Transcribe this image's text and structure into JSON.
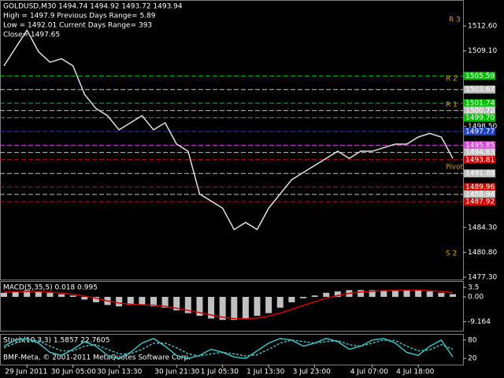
{
  "header": {
    "lines": [
      "GOLDUSD,M30  1494.74 1494.92 1493.72 1493.94",
      "High = 1497.9   Previous Days Range= 5.89",
      "Low = 1492.01   Current Days Range= 393",
      "Close= 1497.65"
    ]
  },
  "footer": "BMF-Meta, © 2001-2011 MetaQuotes Software Corp.",
  "chart_data": [
    {
      "type": "line",
      "color": "#e0e0e0",
      "categories": [
        null,
        null,
        "29 Jun 2011",
        null,
        null,
        null,
        "30 Jun 05:00",
        null,
        null,
        null,
        "30 Jun 13:30",
        null,
        null,
        null,
        null,
        "30 Jun 21:30",
        null,
        null,
        null,
        "1 Jul 05:30",
        null,
        null,
        null,
        "1 Jul 13:30",
        null,
        null,
        null,
        "3 Jul 23:00",
        null,
        null,
        null,
        null,
        "4 Jul 07:00",
        null,
        null,
        null,
        "4 Jul 18:00",
        null,
        null,
        null
      ],
      "values": [
        1507,
        1509.5,
        1512,
        1509,
        1507.5,
        1508,
        1507,
        1503,
        1501,
        1500,
        1498,
        1499,
        1500,
        1498,
        1499,
        1496,
        1495,
        1489,
        1488,
        1487,
        1484,
        1485,
        1484,
        1487,
        1489,
        1491,
        1492,
        1493,
        1494,
        1495,
        1494,
        1495,
        1495,
        1495.5,
        1496,
        1496,
        1497,
        1497.5,
        1497,
        1494
      ],
      "ylim": [
        1476.97,
        1516.25
      ],
      "yticks": [
        {
          "value": 1512.6,
          "label": "1512.60"
        },
        {
          "value": 1509.1,
          "label": "1509.10"
        },
        {
          "value": 1498.5,
          "label": "1498.50"
        },
        {
          "value": 1484.3,
          "label": "1484.30"
        },
        {
          "value": 1480.8,
          "label": "1480.80"
        },
        {
          "value": 1477.3,
          "label": "1477.30"
        }
      ],
      "levels": [
        {
          "value": 1505.59,
          "color": "#00c000"
        },
        {
          "value": 1503.67,
          "color": "#c0c0c0"
        },
        {
          "value": 1501.74,
          "color": "#00c000"
        },
        {
          "value": 1500.72,
          "color": "#c0c0c0"
        },
        {
          "value": {
            "value": 1499.7,
            "label": "1499.70"
          },
          "color": "#00c000"
        },
        {
          "value": 1497.77,
          "color": "#2040c0"
        },
        {
          "value": 1495.85,
          "color": "#e040e0"
        },
        {
          "value": 1494.83,
          "color": "#c0c0c0"
        },
        {
          "value": 1493.81,
          "color": "#d00000"
        },
        {
          "value": 1491.88,
          "color": "#c0c0c0"
        },
        {
          "value": {
            "value": 1489.96,
            "label": "1489.96"
          },
          "color": "#d00000"
        },
        {
          "value": 1488.94,
          "color": "#c0c0c0"
        },
        {
          "value": 1487.92,
          "color": "#d00000"
        }
      ],
      "annotations": [
        "R 3",
        "R 2",
        "R 1",
        "Pivot",
        "S 2"
      ]
    },
    {
      "type": "bar",
      "title": "MACD(5,35,5) 0.018 0.995",
      "color": "#c0c0c0",
      "line_color": "#d00000",
      "values": [
        1.5,
        2,
        2.5,
        2,
        1.5,
        1,
        0.5,
        -1,
        -2,
        -3,
        -3.5,
        -3,
        -3,
        -3.5,
        -4,
        -5,
        -6,
        -7,
        -8,
        -8.5,
        -8.5,
        -8,
        -7,
        -6,
        -4,
        -2,
        -0.5,
        0.5,
        1.5,
        2,
        2.5,
        2.5,
        2.5,
        2.5,
        2.5,
        2.5,
        2.5,
        2,
        1.5,
        1
      ],
      "signal": [
        1.8,
        1.9,
        2,
        2,
        1.8,
        1.4,
        1,
        0.3,
        -0.5,
        -1.5,
        -2.3,
        -2.7,
        -2.9,
        -3.1,
        -3.5,
        -4.2,
        -5,
        -5.8,
        -6.7,
        -7.5,
        -8,
        -8.1,
        -7.8,
        -7.1,
        -6,
        -4.6,
        -3.2,
        -1.8,
        -0.5,
        0.5,
        1.3,
        1.8,
        2.1,
        2.3,
        2.4,
        2.5,
        2.5,
        2.3,
        2,
        1.6
      ],
      "ylim": [
        -12.5,
        5.8
      ],
      "yticks": [
        3.5,
        {
          "value": 0,
          "label": "0.00"
        },
        -9.164
      ]
    },
    {
      "type": "line",
      "title": "Stoch(10,3,3) 1.5857 22.7605",
      "color": "#40c0c0",
      "line_color": "#40c0c0",
      "values": [
        60,
        80,
        85,
        70,
        40,
        30,
        50,
        75,
        60,
        30,
        20,
        40,
        70,
        85,
        60,
        30,
        20,
        30,
        50,
        40,
        25,
        20,
        45,
        70,
        85,
        80,
        60,
        70,
        85,
        75,
        50,
        60,
        80,
        85,
        70,
        40,
        30,
        60,
        80,
        25
      ],
      "signal": [
        55,
        70,
        80,
        78,
        60,
        45,
        45,
        60,
        65,
        50,
        35,
        35,
        50,
        70,
        70,
        55,
        35,
        28,
        35,
        40,
        35,
        28,
        32,
        50,
        70,
        80,
        75,
        70,
        75,
        78,
        65,
        60,
        70,
        80,
        78,
        60,
        45,
        48,
        65,
        50
      ],
      "ylim": [
        0,
        100
      ],
      "yticks": [
        80,
        20
      ]
    }
  ]
}
